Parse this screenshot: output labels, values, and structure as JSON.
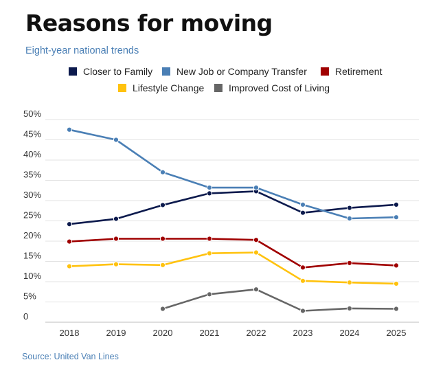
{
  "chart_data": {
    "type": "line",
    "title": "Reasons for moving",
    "subtitle": "Eight-year national trends",
    "source": "Source: United Van Lines",
    "xlabel": "",
    "ylabel": "",
    "x": [
      "2018",
      "2019",
      "2020",
      "2021",
      "2022",
      "2023",
      "2024",
      "2025"
    ],
    "ylim": [
      0,
      50
    ],
    "y_ticks": [
      0,
      5,
      10,
      15,
      20,
      25,
      30,
      35,
      40,
      45,
      50
    ],
    "y_tick_labels": [
      "0",
      "5%",
      "10%",
      "15%",
      "20%",
      "25%",
      "30%",
      "35%",
      "40%",
      "45%",
      "50%"
    ],
    "grid": true,
    "legend_position": "top",
    "series": [
      {
        "name": "Closer to Family",
        "color": "#0c1a4d",
        "values": [
          24.2,
          25.5,
          28.9,
          31.8,
          32.3,
          27.0,
          28.2,
          29.0
        ]
      },
      {
        "name": "New Job or Company Transfer",
        "color": "#4a7fb5",
        "values": [
          47.5,
          45.0,
          37.0,
          33.2,
          33.2,
          29.0,
          25.6,
          25.9
        ]
      },
      {
        "name": "Retirement",
        "color": "#a00000",
        "values": [
          19.9,
          20.6,
          20.6,
          20.6,
          20.3,
          13.5,
          14.6,
          14.0
        ]
      },
      {
        "name": "Lifestyle Change",
        "color": "#ffc20e",
        "values": [
          13.8,
          14.3,
          14.1,
          17.0,
          17.2,
          10.2,
          9.8,
          9.5
        ]
      },
      {
        "name": "Improved Cost of Living",
        "color": "#666666",
        "values": [
          null,
          null,
          3.3,
          6.9,
          8.1,
          2.8,
          3.4,
          3.3
        ]
      }
    ]
  }
}
